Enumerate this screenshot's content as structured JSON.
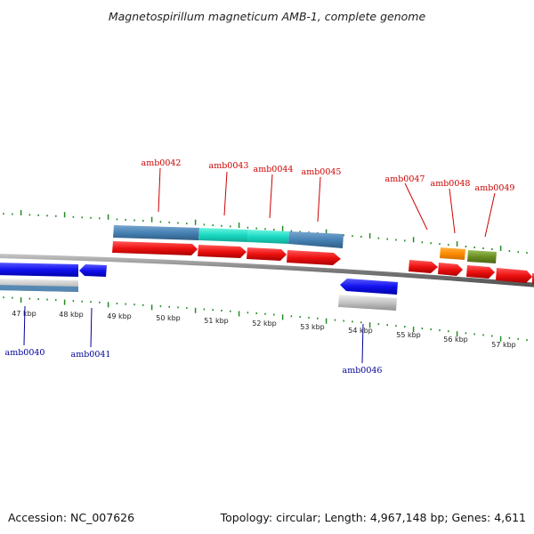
{
  "title": "Magnetospirillum magneticum AMB-1, complete genome",
  "footer": {
    "accession": "Accession: NC_007626",
    "topology": "Topology: circular; Length: 4,967,148 bp; Genes: 4,611"
  },
  "scale_labels": [
    "47 kbp",
    "48 kbp",
    "49 kbp",
    "50 kbp",
    "51 kbp",
    "52 kbp",
    "53 kbp",
    "54 kbp",
    "55 kbp",
    "56 kbp",
    "57 kbp"
  ],
  "forward_genes": [
    {
      "name": "amb0042",
      "color": "#cc0000"
    },
    {
      "name": "amb0043",
      "color": "#cc0000"
    },
    {
      "name": "amb0044",
      "color": "#cc0000"
    },
    {
      "name": "amb0045",
      "color": "#cc0000"
    },
    {
      "name": "amb0047",
      "color": "#cc0000"
    },
    {
      "name": "amb0048",
      "color": "#cc0000"
    },
    {
      "name": "amb0049",
      "color": "#cc0000"
    }
  ],
  "reverse_genes": [
    {
      "name": "amb0040",
      "color": "#000099"
    },
    {
      "name": "amb0041",
      "color": "#000099"
    },
    {
      "name": "amb0046",
      "color": "#000099"
    }
  ],
  "colors": {
    "forward_cds": "#ee1111",
    "reverse_cds": "#1111ee",
    "feature_steelblue": "#4682b4",
    "feature_teal": "#1ad9c2",
    "feature_orange": "#ff8c00",
    "feature_olive": "#6b8e23",
    "feature_gray": "#b8b8b8",
    "tick_green": "#228b22",
    "backbone": "#808080"
  }
}
